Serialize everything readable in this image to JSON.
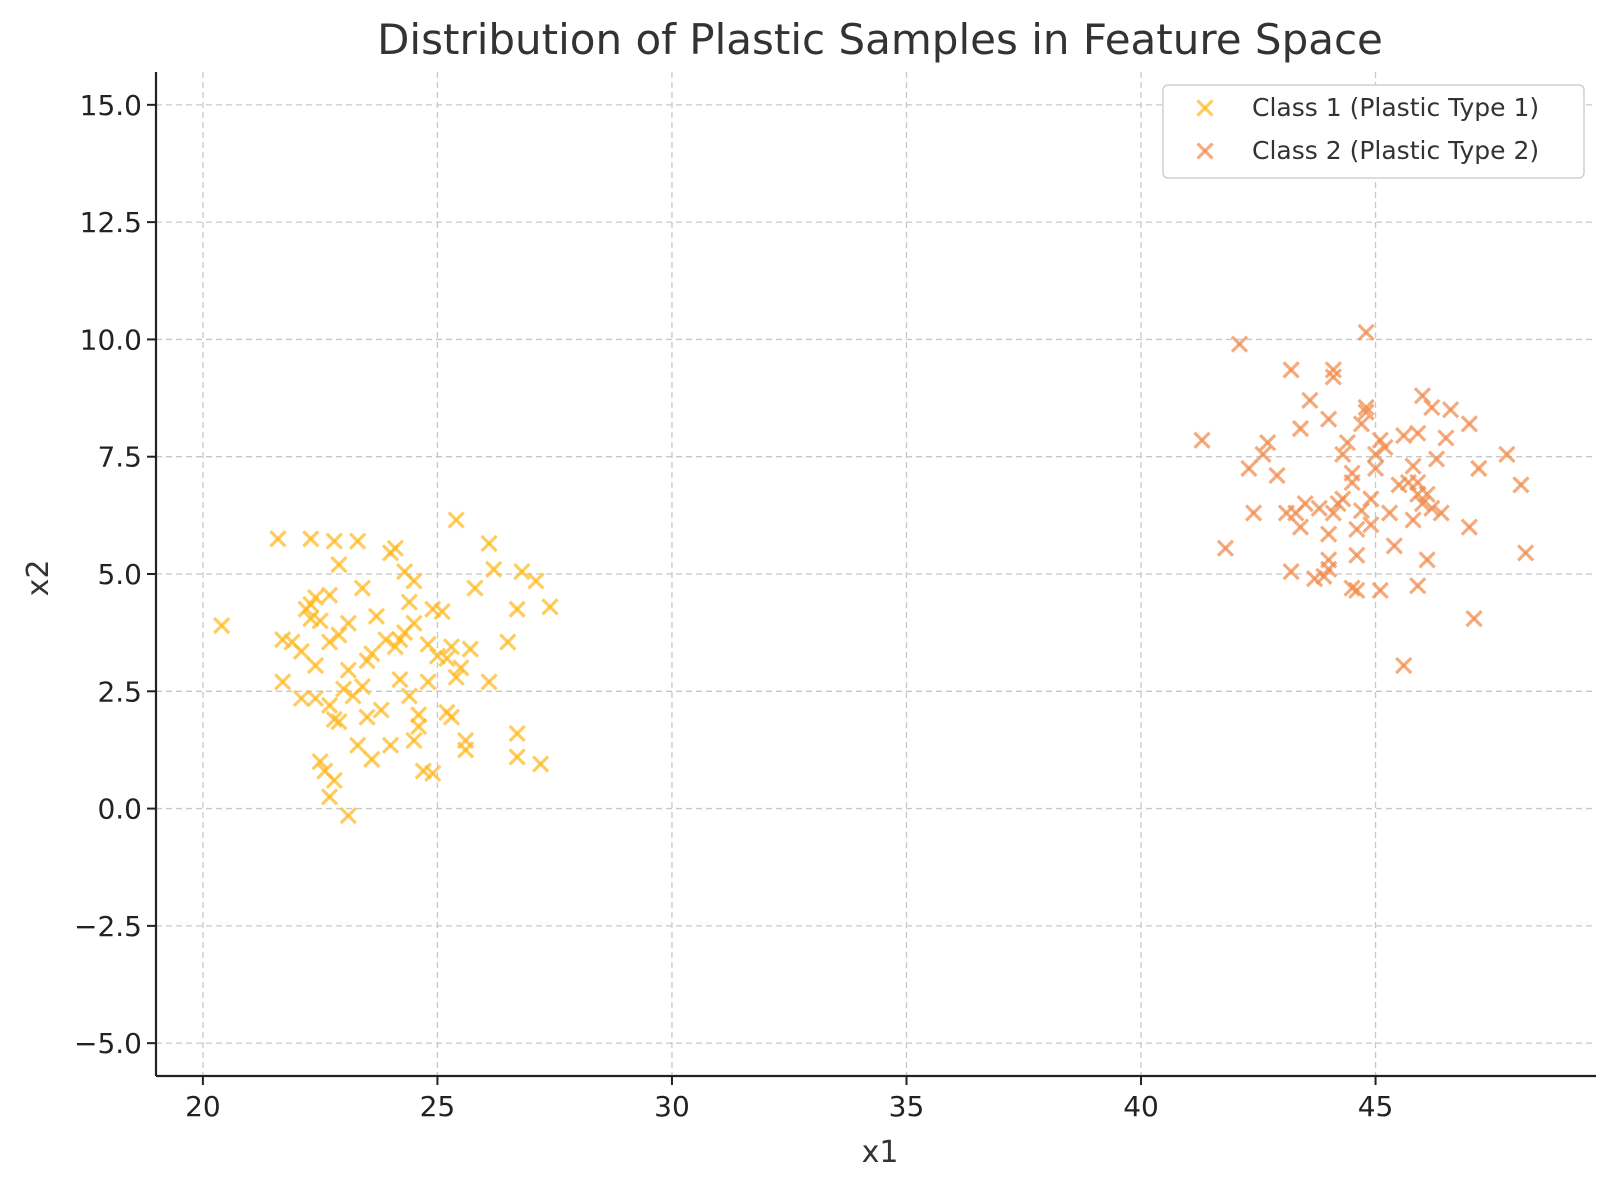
{
  "chart_data": {
    "type": "scatter",
    "title": "Distribution of Plastic Samples in Feature Space",
    "xlabel": "x1",
    "ylabel": "x2",
    "xlim": [
      19,
      49.7
    ],
    "ylim": [
      -5.7,
      15.7
    ],
    "xticks": [
      20,
      25,
      30,
      35,
      40,
      45
    ],
    "xtick_labels": [
      "20",
      "25",
      "30",
      "35",
      "40",
      "45"
    ],
    "yticks": [
      -5,
      -2.5,
      0,
      2.5,
      5,
      7.5,
      10,
      12.5,
      15
    ],
    "ytick_labels": [
      "−5.0",
      "−2.5",
      "0.0",
      "2.5",
      "5.0",
      "7.5",
      "10.0",
      "12.5",
      "15.0"
    ],
    "grid": true,
    "legend_position": "top-right",
    "marker": "x",
    "series": [
      {
        "name": "Class 1 (Plastic Type 1)",
        "color": "#ffb820",
        "points": [
          [
            20.4,
            3.9
          ],
          [
            21.6,
            5.75
          ],
          [
            21.7,
            3.6
          ],
          [
            21.9,
            3.55
          ],
          [
            21.7,
            2.7
          ],
          [
            22.1,
            3.35
          ],
          [
            22.1,
            2.35
          ],
          [
            22.2,
            4.25
          ],
          [
            22.3,
            4.05
          ],
          [
            22.3,
            4.35
          ],
          [
            22.3,
            5.75
          ],
          [
            22.4,
            4.5
          ],
          [
            22.4,
            3.05
          ],
          [
            22.5,
            4.0
          ],
          [
            22.5,
            1.0
          ],
          [
            22.6,
            0.8
          ],
          [
            22.4,
            2.35
          ],
          [
            22.7,
            4.55
          ],
          [
            22.7,
            3.55
          ],
          [
            22.8,
            5.7
          ],
          [
            22.7,
            2.2
          ],
          [
            22.8,
            1.9
          ],
          [
            22.9,
            1.85
          ],
          [
            22.7,
            0.25
          ],
          [
            22.8,
            0.6
          ],
          [
            22.9,
            5.2
          ],
          [
            22.9,
            3.7
          ],
          [
            23.0,
            2.55
          ],
          [
            23.1,
            3.95
          ],
          [
            23.1,
            2.95
          ],
          [
            23.2,
            2.4
          ],
          [
            23.3,
            5.7
          ],
          [
            23.3,
            1.35
          ],
          [
            23.1,
            -0.15
          ],
          [
            23.4,
            4.7
          ],
          [
            23.4,
            2.6
          ],
          [
            23.5,
            1.95
          ],
          [
            23.5,
            3.15
          ],
          [
            23.6,
            1.05
          ],
          [
            23.6,
            3.3
          ],
          [
            23.7,
            4.1
          ],
          [
            23.8,
            2.1
          ],
          [
            23.9,
            3.6
          ],
          [
            24.0,
            5.45
          ],
          [
            24.0,
            1.35
          ],
          [
            24.1,
            5.55
          ],
          [
            24.1,
            3.45
          ],
          [
            24.2,
            3.6
          ],
          [
            24.2,
            2.75
          ],
          [
            24.3,
            5.05
          ],
          [
            24.3,
            3.75
          ],
          [
            24.4,
            4.4
          ],
          [
            24.4,
            2.4
          ],
          [
            24.5,
            4.85
          ],
          [
            24.5,
            3.95
          ],
          [
            24.6,
            2.0
          ],
          [
            24.6,
            1.75
          ],
          [
            24.5,
            1.45
          ],
          [
            24.7,
            0.8
          ],
          [
            24.8,
            3.5
          ],
          [
            24.8,
            2.7
          ],
          [
            24.9,
            4.25
          ],
          [
            24.9,
            0.75
          ],
          [
            25.0,
            3.25
          ],
          [
            25.1,
            4.2
          ],
          [
            25.2,
            3.2
          ],
          [
            25.2,
            2.05
          ],
          [
            25.3,
            1.95
          ],
          [
            25.3,
            3.45
          ],
          [
            25.4,
            2.8
          ],
          [
            25.4,
            6.15
          ],
          [
            25.5,
            3.0
          ],
          [
            25.6,
            1.45
          ],
          [
            25.6,
            1.25
          ],
          [
            25.7,
            3.4
          ],
          [
            25.8,
            4.7
          ],
          [
            26.1,
            5.65
          ],
          [
            26.1,
            2.7
          ],
          [
            26.2,
            5.1
          ],
          [
            26.5,
            3.55
          ],
          [
            26.7,
            4.25
          ],
          [
            26.7,
            1.6
          ],
          [
            26.7,
            1.1
          ],
          [
            26.8,
            5.05
          ],
          [
            27.1,
            4.85
          ],
          [
            27.2,
            0.95
          ],
          [
            27.4,
            4.3
          ]
        ]
      },
      {
        "name": "Class 2 (Plastic Type 2)",
        "color": "#f08a4b",
        "points": [
          [
            41.3,
            7.85
          ],
          [
            41.8,
            5.55
          ],
          [
            42.1,
            9.9
          ],
          [
            42.3,
            7.25
          ],
          [
            42.4,
            6.3
          ],
          [
            42.6,
            7.55
          ],
          [
            42.7,
            7.8
          ],
          [
            42.9,
            7.1
          ],
          [
            43.1,
            6.3
          ],
          [
            43.2,
            5.05
          ],
          [
            43.2,
            9.35
          ],
          [
            43.3,
            6.3
          ],
          [
            43.4,
            6.0
          ],
          [
            43.4,
            8.1
          ],
          [
            43.5,
            6.5
          ],
          [
            43.6,
            8.7
          ],
          [
            43.7,
            4.9
          ],
          [
            43.8,
            6.4
          ],
          [
            43.9,
            4.95
          ],
          [
            44.0,
            5.85
          ],
          [
            44.0,
            5.1
          ],
          [
            44.0,
            5.3
          ],
          [
            44.1,
            9.2
          ],
          [
            44.1,
            9.35
          ],
          [
            44.0,
            8.3
          ],
          [
            44.1,
            6.3
          ],
          [
            44.2,
            6.5
          ],
          [
            44.3,
            7.55
          ],
          [
            44.3,
            6.6
          ],
          [
            44.4,
            7.8
          ],
          [
            44.5,
            6.95
          ],
          [
            44.5,
            7.15
          ],
          [
            44.5,
            4.7
          ],
          [
            44.6,
            4.65
          ],
          [
            44.6,
            5.4
          ],
          [
            44.6,
            5.95
          ],
          [
            44.7,
            6.35
          ],
          [
            44.7,
            8.2
          ],
          [
            44.8,
            8.45
          ],
          [
            44.8,
            8.55
          ],
          [
            44.8,
            10.15
          ],
          [
            44.9,
            6.6
          ],
          [
            44.9,
            6.05
          ],
          [
            45.0,
            7.55
          ],
          [
            45.0,
            7.25
          ],
          [
            45.1,
            4.65
          ],
          [
            45.1,
            7.85
          ],
          [
            45.2,
            7.7
          ],
          [
            45.3,
            6.3
          ],
          [
            45.4,
            5.6
          ],
          [
            45.5,
            6.9
          ],
          [
            45.6,
            3.05
          ],
          [
            45.6,
            7.95
          ],
          [
            45.7,
            6.95
          ],
          [
            45.8,
            6.15
          ],
          [
            45.8,
            7.3
          ],
          [
            45.9,
            4.75
          ],
          [
            45.9,
            6.7
          ],
          [
            45.9,
            6.95
          ],
          [
            45.9,
            8.0
          ],
          [
            46.0,
            8.8
          ],
          [
            46.0,
            6.5
          ],
          [
            46.1,
            5.3
          ],
          [
            46.1,
            6.7
          ],
          [
            46.2,
            6.4
          ],
          [
            46.2,
            8.55
          ],
          [
            46.3,
            7.45
          ],
          [
            46.4,
            6.3
          ],
          [
            46.5,
            7.9
          ],
          [
            46.6,
            8.5
          ],
          [
            47.0,
            8.2
          ],
          [
            47.0,
            6.0
          ],
          [
            47.1,
            4.05
          ],
          [
            47.2,
            7.25
          ],
          [
            47.8,
            7.55
          ],
          [
            48.1,
            6.9
          ],
          [
            48.2,
            5.45
          ]
        ]
      }
    ]
  }
}
